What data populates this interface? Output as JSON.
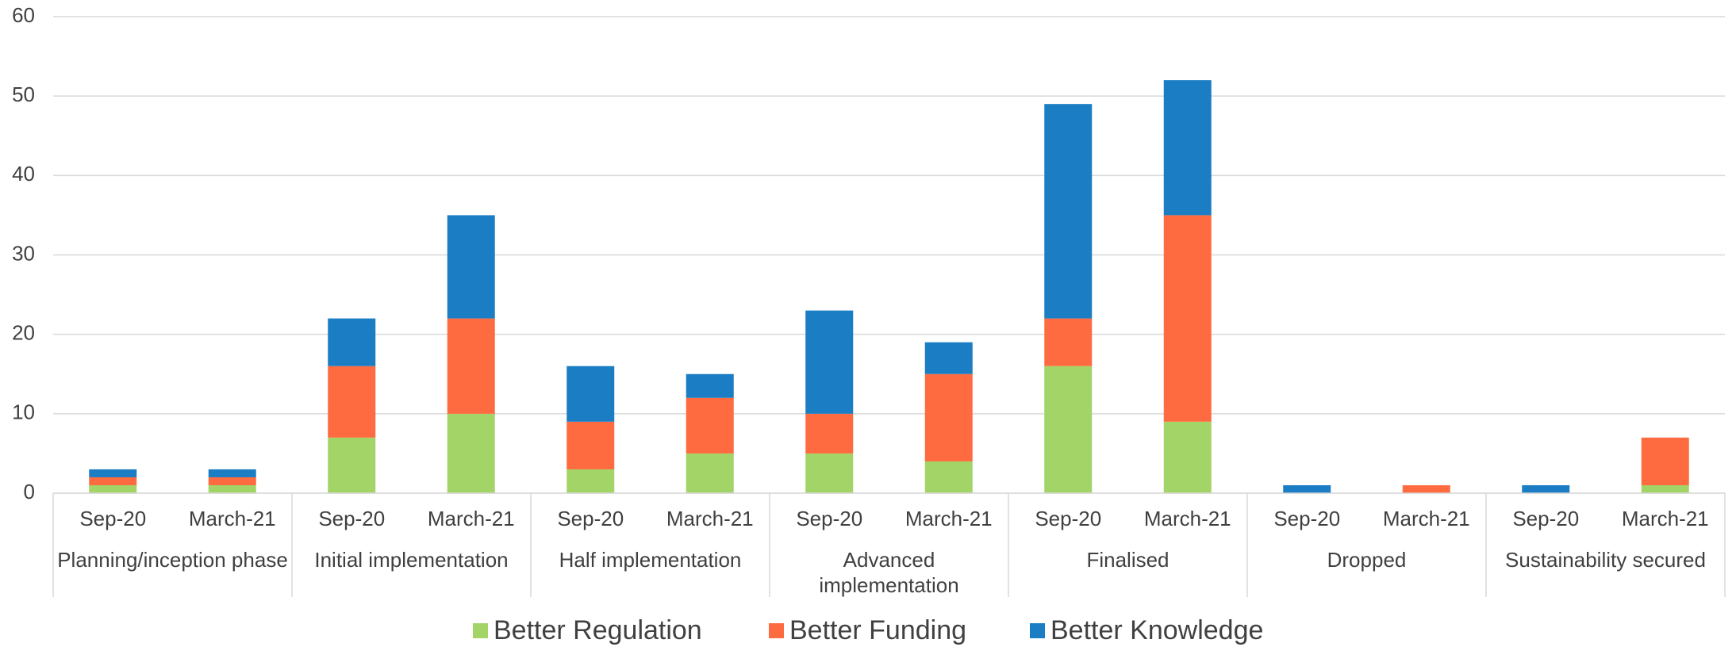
{
  "chart_data": {
    "type": "stacked_bar",
    "groups": [
      {
        "name": "Planning/inception phase",
        "categories": [
          "Sep-20",
          "March-21"
        ]
      },
      {
        "name": "Initial implementation",
        "categories": [
          "Sep-20",
          "March-21"
        ]
      },
      {
        "name": "Half implementation",
        "categories": [
          "Sep-20",
          "March-21"
        ]
      },
      {
        "name": "Advanced implementation",
        "categories": [
          "Sep-20",
          "March-21"
        ]
      },
      {
        "name": "Finalised",
        "categories": [
          "Sep-20",
          "March-21"
        ]
      },
      {
        "name": "Dropped",
        "categories": [
          "Sep-20",
          "March-21"
        ]
      },
      {
        "name": "Sustainability secured",
        "categories": [
          "Sep-20",
          "March-21"
        ]
      }
    ],
    "series": [
      {
        "name": "Better Regulation",
        "color": "#a3d468",
        "values": [
          1,
          1,
          7,
          10,
          3,
          5,
          5,
          4,
          16,
          9,
          0,
          0,
          0,
          1
        ]
      },
      {
        "name": "Better Funding",
        "color": "#ff6b40",
        "values": [
          1,
          1,
          9,
          12,
          6,
          7,
          5,
          11,
          6,
          26,
          0,
          1,
          0,
          6
        ]
      },
      {
        "name": "Better Knowledge",
        "color": "#1b7dc4",
        "values": [
          1,
          1,
          6,
          13,
          7,
          3,
          13,
          4,
          27,
          17,
          1,
          0,
          1,
          0
        ]
      }
    ],
    "ylim": [
      0,
      60
    ],
    "yticks": [
      0,
      10,
      20,
      30,
      40,
      50,
      60
    ],
    "grid": true,
    "legend": "bottom"
  }
}
